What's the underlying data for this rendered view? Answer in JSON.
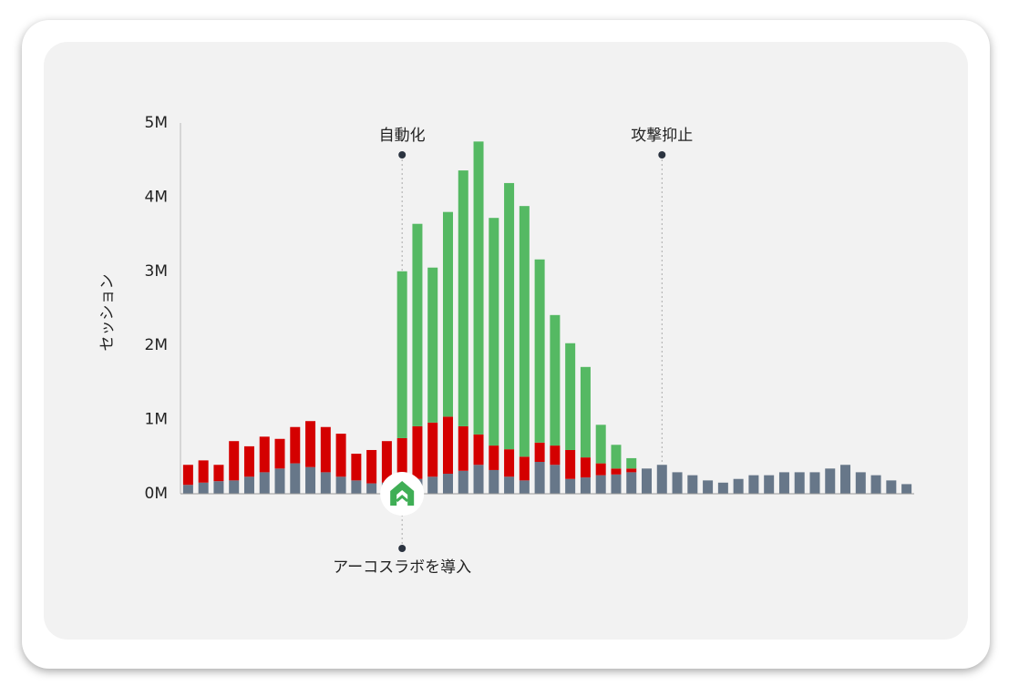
{
  "chart_data": {
    "type": "stacked_bar",
    "y_label": "セッション",
    "annotations": [
      "自動化",
      "攻撃抑止",
      "アーコスラボを導入"
    ],
    "ylim": [
      0,
      5000000
    ],
    "yticks": [
      {
        "value": 0,
        "label": "0M"
      },
      {
        "value": 1000000,
        "label": "1M"
      },
      {
        "value": 2000000,
        "label": "2M"
      },
      {
        "value": 3000000,
        "label": "3M"
      },
      {
        "value": 4000000,
        "label": "4M"
      },
      {
        "value": 5000000,
        "label": "5M"
      }
    ],
    "series": [
      {
        "color": "#677789",
        "values": [
          120000,
          150000,
          170000,
          180000,
          230000,
          290000,
          340000,
          410000,
          360000,
          290000,
          230000,
          180000,
          140000,
          150000,
          150000,
          200000,
          230000,
          270000,
          310000,
          390000,
          320000,
          230000,
          180000,
          430000,
          390000,
          200000,
          220000,
          250000,
          260000,
          290000,
          340000,
          390000,
          290000,
          250000,
          180000,
          150000,
          200000,
          250000,
          250000,
          290000,
          290000,
          290000,
          340000,
          390000,
          290000,
          250000,
          180000,
          130000
        ]
      },
      {
        "color": "#d40000",
        "values": [
          270000,
          300000,
          220000,
          530000,
          410000,
          480000,
          400000,
          490000,
          620000,
          610000,
          580000,
          360000,
          450000,
          560000,
          600000,
          710000,
          730000,
          770000,
          600000,
          410000,
          330000,
          370000,
          320000,
          260000,
          260000,
          390000,
          270000,
          160000,
          80000,
          50000,
          0,
          0,
          0,
          0,
          0,
          0,
          0,
          0,
          0,
          0,
          0,
          0,
          0,
          0,
          0,
          0,
          0,
          0
        ]
      },
      {
        "color": "#55b963",
        "values": [
          0,
          0,
          0,
          0,
          0,
          0,
          0,
          0,
          0,
          0,
          0,
          0,
          0,
          0,
          2250000,
          2730000,
          2090000,
          2760000,
          3450000,
          3950000,
          3070000,
          3590000,
          3380000,
          2470000,
          1760000,
          1440000,
          1220000,
          520000,
          320000,
          140000,
          0,
          0,
          0,
          0,
          0,
          0,
          0,
          0,
          0,
          0,
          0,
          0,
          0,
          0,
          0,
          0,
          0,
          0
        ]
      }
    ]
  }
}
